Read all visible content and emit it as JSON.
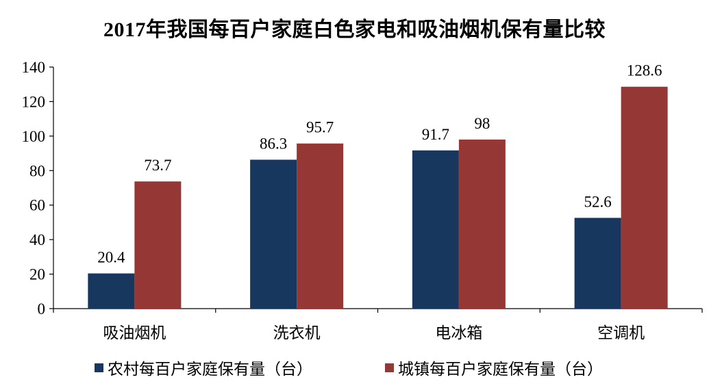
{
  "chart_data": {
    "type": "bar",
    "title": "2017年我国每百户家庭白色家电和吸油烟机保有量比较",
    "categories": [
      "吸油烟机",
      "洗衣机",
      "电冰箱",
      "空调机"
    ],
    "series": [
      {
        "name": "农村每百户家庭保有量（台）",
        "values": [
          20.4,
          86.3,
          91.7,
          52.6
        ],
        "labels": [
          "20.4",
          "86.3",
          "91.7",
          "52.6"
        ],
        "color": "#17375e"
      },
      {
        "name": "城镇每百户家庭保有量（台）",
        "values": [
          73.7,
          95.7,
          98,
          128.6
        ],
        "labels": [
          "73.7",
          "95.7",
          "98",
          "128.6"
        ],
        "color": "#953735"
      }
    ],
    "ylim": [
      0,
      140
    ],
    "yticks": [
      "0",
      "20",
      "40",
      "60",
      "80",
      "100",
      "120",
      "140"
    ],
    "grid": false,
    "legend_position": "bottom"
  }
}
